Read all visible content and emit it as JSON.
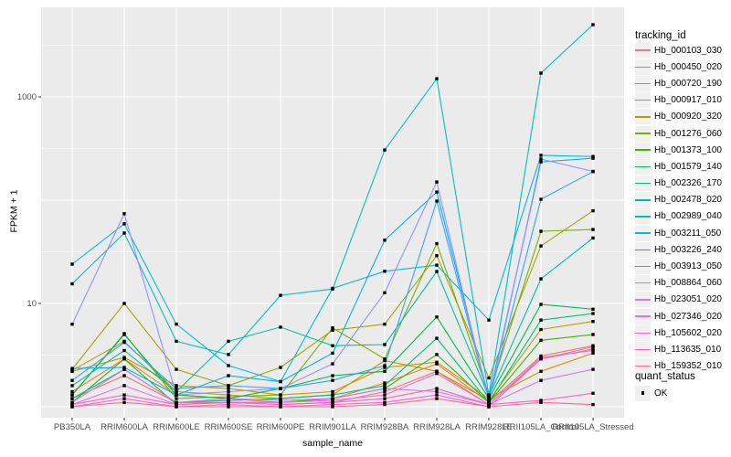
{
  "figure": {
    "background": "#FFFFFF",
    "panel_background": "#EBEBEB",
    "grid_color": "#FFFFFF",
    "tick_text_color": "#4D4D4D",
    "tick_mark_color": "#333333",
    "point_color": "#000000"
  },
  "legend": {
    "tracking_title": "tracking_id",
    "quant_title": "quant_status",
    "quant_label": "OK"
  },
  "chart_data": {
    "type": "line",
    "title": "",
    "xlabel": "sample_name",
    "ylabel": "FPKM + 1",
    "y_scale": "log10",
    "ylim": [
      1,
      5500
    ],
    "grid": true,
    "legend_position": "right",
    "y_axis": {
      "labeled_ticks": [
        {
          "value": 1000,
          "label": "1000"
        },
        {
          "value": 10,
          "label": "10"
        }
      ],
      "major_gridlines": [
        1,
        10,
        100,
        1000
      ],
      "minor_gridlines": [
        3.162,
        31.62,
        316.2,
        3162
      ]
    },
    "categories": [
      "PB350LA",
      "RRIM600LA",
      "RRIM600LE",
      "RRIM600SE",
      "RRIM600PE",
      "RRIM901LA",
      "RRIM928BA",
      "RRIM928LA",
      "RRIM928LE",
      "RRII105LA_Control",
      "RRII105LA_Stressed"
    ],
    "series": [
      {
        "name": "Hb_000103_030",
        "color": "#F8766D",
        "values": [
          1.2,
          2.0,
          1.1,
          1.1,
          1.05,
          1.1,
          1.4,
          2.2,
          1.05,
          2.9,
          3.6
        ]
      },
      {
        "name": "Hb_000450_020",
        "color": "#EA8331",
        "values": [
          1.4,
          2.9,
          1.3,
          1.2,
          1.1,
          1.2,
          1.7,
          2.6,
          1.1,
          3.1,
          3.9
        ]
      },
      {
        "name": "Hb_000720_190",
        "color": "#D89000",
        "values": [
          2.2,
          3.0,
          1.6,
          1.5,
          1.3,
          1.4,
          2.4,
          2.7,
          1.2,
          2.2,
          3.3
        ]
      },
      {
        "name": "Hb_000917_010",
        "color": "#C09B00",
        "values": [
          2.25,
          4.3,
          1.4,
          1.3,
          1.2,
          1.3,
          2.8,
          2.2,
          1.15,
          5.6,
          6.7
        ]
      },
      {
        "name": "Hb_000920_320",
        "color": "#A3A500",
        "values": [
          2.3,
          10.0,
          2.3,
          1.6,
          2.4,
          5.5,
          6.3,
          29,
          1.9,
          36,
          79
        ]
      },
      {
        "name": "Hb_001276_060",
        "color": "#7CAE00",
        "values": [
          1.3,
          5.1,
          1.2,
          1.25,
          1.3,
          5.8,
          2.9,
          38,
          1.3,
          50,
          52
        ]
      },
      {
        "name": "Hb_001373_100",
        "color": "#39B600",
        "values": [
          1.1,
          2.9,
          1.05,
          1.1,
          1.1,
          1.2,
          1.5,
          3.2,
          1.1,
          4.4,
          5.0
        ]
      },
      {
        "name": "Hb_001579_140",
        "color": "#00BB4E",
        "values": [
          1.3,
          5.0,
          1.3,
          1.2,
          1.5,
          2.0,
          2.2,
          7.4,
          1.2,
          9.8,
          8.8
        ]
      },
      {
        "name": "Hb_002326_170",
        "color": "#00BF7D",
        "values": [
          1.2,
          2.3,
          1.1,
          1.15,
          1.2,
          1.3,
          1.6,
          4.6,
          1.1,
          6.9,
          8.0
        ]
      },
      {
        "name": "Hb_002478_020",
        "color": "#00C1A3",
        "values": [
          1.6,
          3.5,
          1.4,
          4.3,
          5.9,
          3.9,
          4.0,
          20.4,
          1.25,
          17.3,
          43
        ]
      },
      {
        "name": "Hb_002989_040",
        "color": "#00BFC4",
        "values": [
          15.5,
          48,
          4.3,
          3.2,
          12,
          13.8,
          306,
          1500,
          1.3,
          1700,
          5000
        ]
      },
      {
        "name": "Hb_003211_050",
        "color": "#00BAE0",
        "values": [
          24,
          59,
          6.3,
          2.5,
          1.75,
          14,
          20.5,
          23.5,
          6.9,
          272,
          265
        ]
      },
      {
        "name": "Hb_003226_240",
        "color": "#00B0F6",
        "values": [
          2.35,
          2.4,
          1.3,
          2.0,
          1.75,
          3.3,
          41,
          120,
          1.2,
          235,
          255
        ]
      },
      {
        "name": "Hb_003913_050",
        "color": "#35A2FF",
        "values": [
          1.8,
          4.2,
          1.5,
          1.6,
          1.5,
          1.8,
          2.5,
          98,
          1.15,
          102,
          189
        ]
      },
      {
        "name": "Hb_008864_060",
        "color": "#9590FF",
        "values": [
          6.3,
          74,
          1.3,
          1.4,
          1.5,
          2.6,
          12.7,
          150,
          1.1,
          250,
          190
        ]
      },
      {
        "name": "Hb_023051_020",
        "color": "#C77CFF",
        "values": [
          1.1,
          2.3,
          1.1,
          1.2,
          1.15,
          1.2,
          1.5,
          1.4,
          1.05,
          1.8,
          2.3
        ]
      },
      {
        "name": "Hb_027346_020",
        "color": "#E76BF3",
        "values": [
          1.05,
          1.6,
          1.05,
          1.1,
          1.1,
          1.15,
          1.3,
          2.1,
          1.05,
          3.0,
          3.5
        ]
      },
      {
        "name": "Hb_105602_020",
        "color": "#FA62DB",
        "values": [
          1.0,
          1.2,
          1.0,
          1.05,
          1.0,
          1.05,
          1.1,
          1.3,
          1.0,
          2.9,
          3.8
        ]
      },
      {
        "name": "Hb_113635_010",
        "color": "#FF62BC",
        "values": [
          1.05,
          1.3,
          1.05,
          1.1,
          1.05,
          1.1,
          1.2,
          1.5,
          1.05,
          1.15,
          1.35
        ]
      },
      {
        "name": "Hb_159352_010",
        "color": "#FF6A98",
        "values": [
          1.0,
          1.1,
          1.0,
          1.0,
          1.0,
          1.0,
          1.05,
          1.2,
          1.0,
          1.1,
          1.05
        ]
      }
    ]
  }
}
